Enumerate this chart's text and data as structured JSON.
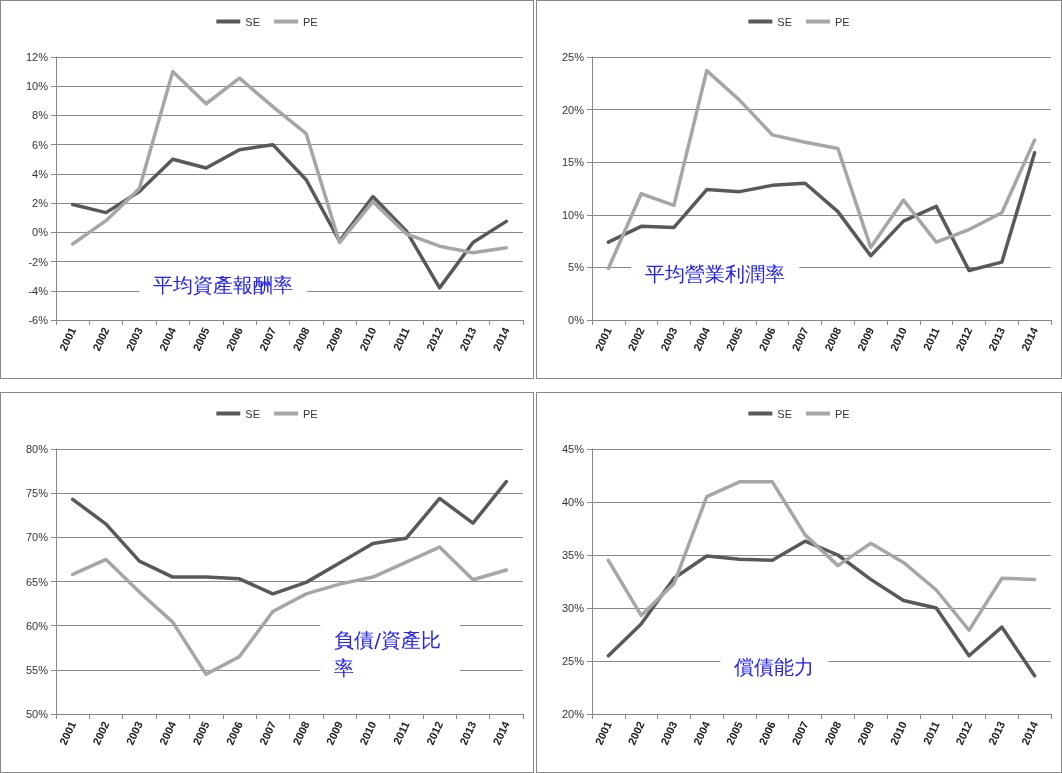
{
  "chart_data": [
    {
      "type": "line",
      "title": "平均資產報酬率",
      "categories": [
        "2001",
        "2002",
        "2003",
        "2004",
        "2005",
        "2006",
        "2007",
        "2008",
        "2009",
        "2010",
        "2011",
        "2012",
        "2013",
        "2014"
      ],
      "series": [
        {
          "name": "SE",
          "color": "#595959",
          "values": [
            1.9,
            1.35,
            2.8,
            5.0,
            4.4,
            5.65,
            6.0,
            3.6,
            -0.6,
            2.45,
            0.1,
            -3.8,
            -0.7,
            0.75
          ]
        },
        {
          "name": "PE",
          "color": "#a6a6a6",
          "values": [
            -0.8,
            0.8,
            3.0,
            11.0,
            8.8,
            10.55,
            8.6,
            6.75,
            -0.7,
            2.1,
            -0.1,
            -0.95,
            -1.4,
            -1.05
          ]
        }
      ],
      "ylim": [
        -6,
        12
      ],
      "yticks": [
        {
          "value": -6,
          "label": "-6%"
        },
        {
          "value": -4,
          "label": "-4%"
        },
        {
          "value": -2,
          "label": "-2%"
        },
        {
          "value": 0,
          "label": "0%"
        },
        {
          "value": 2,
          "label": "2%"
        },
        {
          "value": 4,
          "label": "4%"
        },
        {
          "value": 6,
          "label": "6%"
        },
        {
          "value": 8,
          "label": "8%"
        },
        {
          "value": 10,
          "label": "10%"
        },
        {
          "value": 12,
          "label": "12%"
        }
      ],
      "grid": "y",
      "legend": "top",
      "marker": "none",
      "line_style": "solid"
    },
    {
      "type": "line",
      "title": "平均營業利潤率",
      "categories": [
        "2001",
        "2002",
        "2003",
        "2004",
        "2005",
        "2006",
        "2007",
        "2008",
        "2009",
        "2010",
        "2011",
        "2012",
        "2013",
        "2014"
      ],
      "series": [
        {
          "name": "SE",
          "color": "#595959",
          "values": [
            7.4,
            8.9,
            8.8,
            12.4,
            12.2,
            12.8,
            13.0,
            10.3,
            6.1,
            9.4,
            10.8,
            4.7,
            5.5,
            15.9
          ]
        },
        {
          "name": "PE",
          "color": "#a6a6a6",
          "values": [
            4.9,
            12.0,
            10.9,
            23.7,
            20.9,
            17.6,
            16.9,
            16.3,
            6.9,
            11.4,
            7.4,
            8.6,
            10.2,
            17.1
          ]
        }
      ],
      "ylim": [
        0,
        25
      ],
      "yticks": [
        {
          "value": 0,
          "label": "0%"
        },
        {
          "value": 5,
          "label": "5%"
        },
        {
          "value": 10,
          "label": "10%"
        },
        {
          "value": 15,
          "label": "15%"
        },
        {
          "value": 20,
          "label": "20%"
        },
        {
          "value": 25,
          "label": "25%"
        }
      ],
      "grid": "y",
      "legend": "top",
      "marker": "none",
      "line_style": "solid"
    },
    {
      "type": "line",
      "title": "負債/資產比率",
      "categories": [
        "2001",
        "2002",
        "2003",
        "2004",
        "2005",
        "2006",
        "2007",
        "2008",
        "2009",
        "2010",
        "2011",
        "2012",
        "2013",
        "2014"
      ],
      "series": [
        {
          "name": "SE",
          "color": "#595959",
          "values": [
            74.3,
            71.5,
            67.3,
            65.5,
            65.5,
            65.3,
            63.6,
            64.9,
            67.1,
            69.3,
            69.9,
            74.4,
            71.6,
            76.3
          ]
        },
        {
          "name": "PE",
          "color": "#a6a6a6",
          "values": [
            65.8,
            67.5,
            63.8,
            60.4,
            54.5,
            56.5,
            61.6,
            63.6,
            64.7,
            65.5,
            67.2,
            68.9,
            65.2,
            66.3
          ]
        }
      ],
      "ylim": [
        50,
        80
      ],
      "yticks": [
        {
          "value": 50,
          "label": "50%"
        },
        {
          "value": 55,
          "label": "55%"
        },
        {
          "value": 60,
          "label": "60%"
        },
        {
          "value": 65,
          "label": "65%"
        },
        {
          "value": 70,
          "label": "70%"
        },
        {
          "value": 75,
          "label": "75%"
        },
        {
          "value": 80,
          "label": "80%"
        }
      ],
      "grid": "y",
      "legend": "top",
      "marker": "none",
      "line_style": "solid"
    },
    {
      "type": "line",
      "title": "償債能力",
      "categories": [
        "2001",
        "2002",
        "2003",
        "2004",
        "2005",
        "2006",
        "2007",
        "2008",
        "2009",
        "2010",
        "2011",
        "2012",
        "2013",
        "2014"
      ],
      "series": [
        {
          "name": "SE",
          "color": "#595959",
          "values": [
            25.5,
            28.5,
            32.8,
            34.9,
            34.6,
            34.5,
            36.3,
            35.0,
            32.7,
            30.7,
            30.0,
            25.5,
            28.2,
            23.6
          ]
        },
        {
          "name": "PE",
          "color": "#a6a6a6",
          "values": [
            34.5,
            29.3,
            32.3,
            40.5,
            41.9,
            41.9,
            36.9,
            34.0,
            36.1,
            34.3,
            31.7,
            27.9,
            32.8,
            32.7
          ]
        }
      ],
      "ylim": [
        20,
        45
      ],
      "yticks": [
        {
          "value": 20,
          "label": "20%"
        },
        {
          "value": 25,
          "label": "25%"
        },
        {
          "value": 30,
          "label": "30%"
        },
        {
          "value": 35,
          "label": "35%"
        },
        {
          "value": 40,
          "label": "40%"
        },
        {
          "value": 45,
          "label": "45%"
        }
      ],
      "grid": "y",
      "legend": "top",
      "marker": "none",
      "line_style": "solid"
    }
  ]
}
